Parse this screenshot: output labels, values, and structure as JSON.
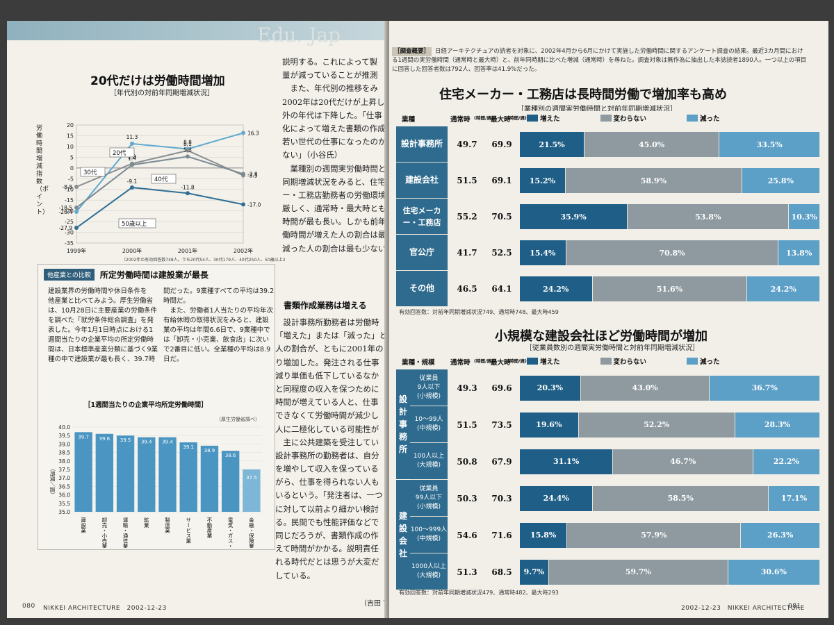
{
  "left_page": {
    "watermark": "Edu. Jap",
    "line_chart": {
      "title": "20代だけは労働時間増加",
      "subtitle": "［年代別の対前年同期増減状況］",
      "ylabel": "労働時間増減指数（ポイント）",
      "note": "（2002年の有効回答数748人。うち20代54人、30代179人、40代250人、50歳以上275人）"
    },
    "other_industries": {
      "tag": "他産業との比較",
      "title": "所定労働時間は建設業が最長",
      "col1": [
        "建設業界の労働時間や休日条件を",
        "他産業と比べてみよう。厚生労働省",
        "は、10月28日に主要産業の労働条件",
        "を調べた「就労条件総合調査」を発",
        "表した。今年1月1日時点における1",
        "週間当たりの企業平均の所定労働時",
        "間は、日本標準産業分類に基づく9業",
        "種の中で建設業が最も長く、39.7時"
      ],
      "col2": [
        "間だった。9業種すべての平均は39.2",
        "時間だ。",
        "　また、労働者1人当たりの平均年次",
        "有給休暇の取得状況をみると、建設",
        "業の平均は年間6.6日で、9業種中で",
        "は「卸売・小売業、飲食店」に次い",
        "で2番目に低い。全業種の平均は8.9",
        "日だ。"
      ],
      "bar_chart_title": "［1週間当たりの企業平均所定労働時間］",
      "bar_chart_source": "（厚生労働省調べ）",
      "bar_chart_ylabel": "（時間／週）"
    },
    "body_col1": [
      "説明する。これによって製",
      "量が減っていることが推測",
      "　また、年代別の推移をみ",
      "2002年は20代だけが上昇し",
      "外の年代は下降した。「仕事",
      "化によって増えた書類の作成",
      "若い世代の仕事になったのか",
      "ない」（小谷氏）",
      "　業種別の週間実労働時間と",
      "同期増減状況をみると、住宅",
      "ー・工務店勤務者の労働環境",
      "厳しく、通常時・最大時とも",
      "時間が最も長い。しかも前年",
      "働時間が増えた人の割合は最",
      "減った人の割合は最も少ない"
    ],
    "section_head": "書類作成業務は増える",
    "body_col2": [
      "　設計事務所勤務者は労働時",
      "「増えた」または「減った」と",
      "人の割合が、ともに2001年の",
      "り増加した。発注される仕事",
      "減り単価も低下しているなか",
      "と同程度の収入を保つために",
      "時間が増えている人と、仕事",
      "できなくて労働時間が減少し",
      "人に二極化している可能性が",
      "　主に公共建築を受注してい",
      "設計事務所の勤務者は、自分",
      "を増やして収入を保っている",
      "がら、仕事を得られない人も",
      "いるという。「発注者は、一つ",
      "に対して以前より細かい検討",
      "る。民間でも性能評価などで",
      "同じだろうが、書類作成の作",
      "えて時間がかかる。説明責任",
      "れる時代だとは思うが大変だ",
      "している。"
    ],
    "byline": "（吉田 育子）",
    "page_num": "080",
    "footer": "NIKKEI ARCHITECTURE　2002-12-23"
  },
  "right_page": {
    "survey_tag": "［調査概要］",
    "survey_text": "日経アーキテクチュアの読者を対象に、2002年4月から6月にかけて実施した労働時間に関するアンケート調査の結果。最近3カ月間における1週間の実労働時間（通常時と最大時）と、前年同時期に比べた増減（通常時）を尋ねた。調査対象は無作為に抽出した本誌読者1890人。一つ以上の項目に回答した回答者数は792人、回答率は41.9%だった。",
    "table1": {
      "title": "住宅メーカー・工務店は長時間労働で増加率も高め",
      "subtitle": "［業種別の週間実労働時間と対前年同期増減状況］",
      "col_type": "業種",
      "col_normal": "通常時",
      "col_normal_unit": "(時間/週)",
      "col_max": "最大時",
      "col_max_unit": "(時間/週)",
      "legend_inc": "増えた",
      "legend_same": "変わらない",
      "legend_dec": "減った",
      "rows": [
        {
          "label": "設計事務所",
          "normal": "49.7",
          "max": "69.9",
          "inc": 21.5,
          "same": 45.0,
          "dec": 33.5,
          "inc_t": "21.5%",
          "same_t": "45.0%",
          "dec_t": "33.5%"
        },
        {
          "label": "建設会社",
          "normal": "51.5",
          "max": "69.1",
          "inc": 15.2,
          "same": 58.9,
          "dec": 25.8,
          "inc_t": "15.2%",
          "same_t": "58.9%",
          "dec_t": "25.8%"
        },
        {
          "label": "住宅メーカー・工務店",
          "normal": "55.2",
          "max": "70.5",
          "inc": 35.9,
          "same": 53.8,
          "dec": 10.3,
          "inc_t": "35.9%",
          "same_t": "53.8%",
          "dec_t": "10.3%"
        },
        {
          "label": "官公庁",
          "normal": "41.7",
          "max": "52.5",
          "inc": 15.4,
          "same": 70.8,
          "dec": 13.8,
          "inc_t": "15.4%",
          "same_t": "70.8%",
          "dec_t": "13.8%"
        },
        {
          "label": "その他",
          "normal": "46.5",
          "max": "64.1",
          "inc": 24.2,
          "same": 51.6,
          "dec": 24.2,
          "inc_t": "24.2%",
          "same_t": "51.6%",
          "dec_t": "24.2%"
        }
      ],
      "note": "有効回答数：対前年同期増減状況749、通常時748、最大時459"
    },
    "table2": {
      "title": "小規模な建設会社ほど労働時間が増加",
      "subtitle": "［従業員数別の週間実労働時間と対前年同期増減状況］",
      "col_type": "業種・規模",
      "group1": "設計事務所",
      "group2": "建設会社",
      "rows": [
        {
          "label": "従業員\n9人以下\n(小規模)",
          "normal": "49.3",
          "max": "69.6",
          "inc": 20.3,
          "same": 43.0,
          "dec": 36.7,
          "inc_t": "20.3%",
          "same_t": "43.0%",
          "dec_t": "36.7%"
        },
        {
          "label": "10〜99人\n(中規模)",
          "normal": "51.5",
          "max": "73.5",
          "inc": 19.6,
          "same": 52.2,
          "dec": 28.3,
          "inc_t": "19.6%",
          "same_t": "52.2%",
          "dec_t": "28.3%"
        },
        {
          "label": "100人以上\n(大規模)",
          "normal": "50.8",
          "max": "67.9",
          "inc": 31.1,
          "same": 46.7,
          "dec": 22.2,
          "inc_t": "31.1%",
          "same_t": "46.7%",
          "dec_t": "22.2%"
        },
        {
          "label": "従業員\n99人以下\n(小規模)",
          "normal": "50.3",
          "max": "70.3",
          "inc": 24.4,
          "same": 58.5,
          "dec": 17.1,
          "inc_t": "24.4%",
          "same_t": "58.5%",
          "dec_t": "17.1%"
        },
        {
          "label": "100〜999人\n(中規模)",
          "normal": "54.6",
          "max": "71.6",
          "inc": 15.8,
          "same": 57.9,
          "dec": 26.3,
          "inc_t": "15.8%",
          "same_t": "57.9%",
          "dec_t": "26.3%"
        },
        {
          "label": "1000人以上\n(大規模)",
          "normal": "51.3",
          "max": "68.5",
          "inc": 9.7,
          "same": 59.7,
          "dec": 30.6,
          "inc_t": "9.7%",
          "same_t": "59.7%",
          "dec_t": "30.6%"
        }
      ],
      "note": "有効回答数：対前年同期増減状況479、通常時482、最大時293"
    },
    "footer": "2002-12-23　NIKKEI ARCHITECTURE",
    "page_num": "081"
  },
  "colors": {
    "increase": "#1f5f87",
    "same": "#8e9aa0",
    "decrease": "#5c9fc7",
    "label_bg": "#2e6b8e"
  },
  "chart_data": [
    {
      "type": "line",
      "title": "20代だけは労働時間増加",
      "subtitle": "［年代別の対前年同期増減状況］",
      "ylabel": "労働時間増減指数（ポイント）",
      "x": [
        "1999年",
        "2000年",
        "2001年",
        "2002年"
      ],
      "ylim": [
        -35,
        20
      ],
      "yticks": [
        20,
        15,
        10,
        5,
        0,
        -5,
        -10,
        -15,
        -20,
        -25,
        -30,
        -35
      ],
      "series": [
        {
          "name": "20代",
          "values": [
            -20.4,
            11.3,
            8.8,
            16.3
          ]
        },
        {
          "name": "30代",
          "values": [
            -8.8,
            2.0,
            8.1,
            -3.5
          ]
        },
        {
          "name": "40代",
          "values": [
            -18.5,
            1.4,
            5.3,
            -2.8
          ]
        },
        {
          "name": "50歳以上",
          "values": [
            -27.9,
            -9.1,
            -11.8,
            -17.0
          ]
        }
      ]
    },
    {
      "type": "bar",
      "title": "［1週間当たりの企業平均所定労働時間］",
      "ylabel": "（時間／週）",
      "categories": [
        "建設業",
        "卸売・小売業、飲食店",
        "運輸・通信業",
        "鉱業",
        "製造業",
        "サービス業",
        "不動産業",
        "電気・ガス・熱供給・水道業",
        "金融・保険業"
      ],
      "values": [
        39.7,
        39.6,
        39.5,
        39.4,
        39.4,
        39.1,
        38.9,
        38.6,
        37.5
      ],
      "ylim": [
        35.0,
        40.0
      ]
    }
  ]
}
